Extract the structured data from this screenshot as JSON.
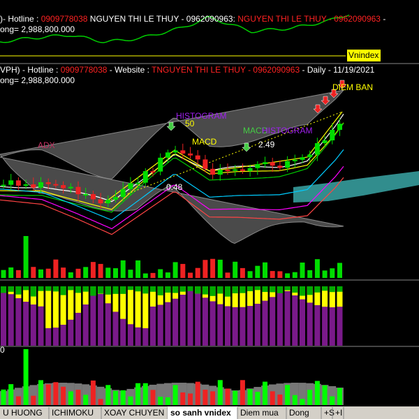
{
  "top_panel": {
    "header": [
      ")- Hotline : ",
      "0909778038",
      " NGUYEN THI LE THUY - 0962090963:",
      "  NGUYEN THI LE THUY - 0962090963",
      " -"
    ],
    "volume_line": "ong= 2,988,800.000",
    "compare_label": "Vnindex"
  },
  "main_panel": {
    "header": [
      "VPH) - Hotline : ",
      "0909778038",
      " - Website : ",
      " TNGUYEN THI LE THUY - 0962090963",
      " - Daily  - 11/19/2021"
    ],
    "volume_line": "ong= 2,988,800.000",
    "annotations": {
      "sell": "DIEM BAN",
      "histogram_1": "HISTOGRAM",
      "fifty": "50",
      "adx": "ADX",
      "macd_1": "MACD",
      "macd_2": "MACD",
      "histogram_2": "HISTOGRAM",
      "level_high": "2.49",
      "level_low": "0.48"
    }
  },
  "bottom_panel": {
    "axis_label": "0"
  },
  "tabs": [
    "U HUONG",
    "ICHIMOKU",
    "XOAY CHUYEN",
    "so sanh vnidex",
    "Diem mua",
    "Dong",
    "+S",
    "+I"
  ]
}
